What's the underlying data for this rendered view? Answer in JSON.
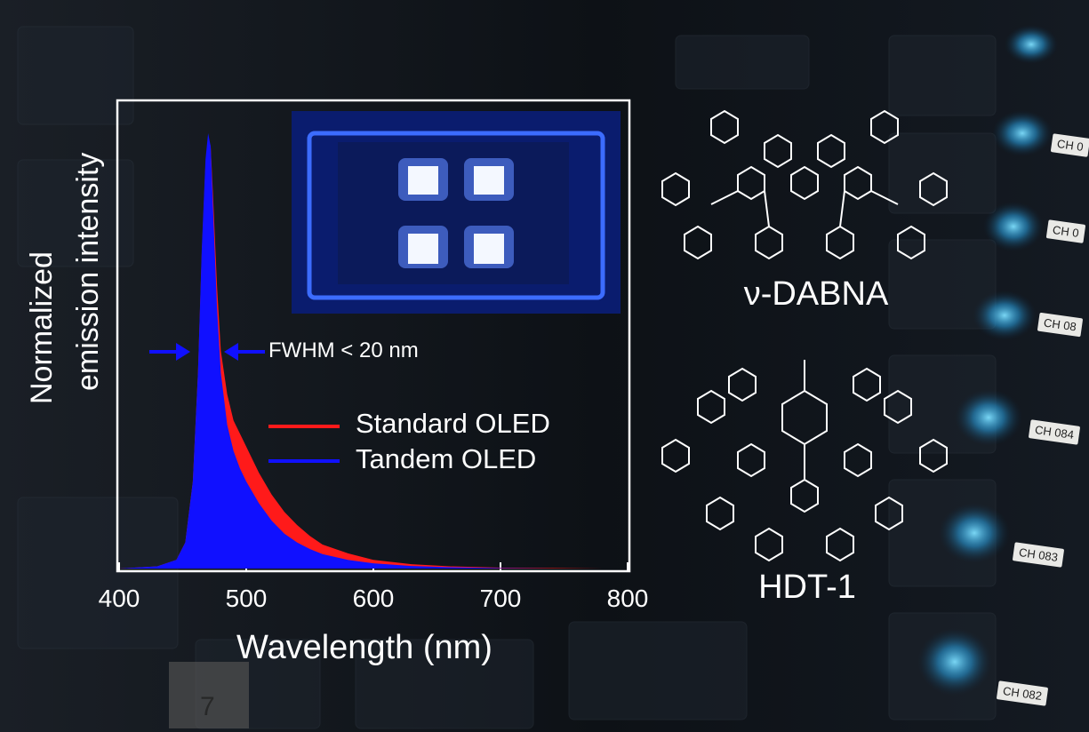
{
  "chart_data": {
    "type": "area",
    "xlabel": "Wavelength (nm)",
    "ylabel": [
      "Normalized",
      "emission intensity"
    ],
    "xlim": [
      400,
      800
    ],
    "ylim": [
      0,
      1.0
    ],
    "x_ticks": [
      "400",
      "500",
      "600",
      "700",
      "800"
    ],
    "grid": false,
    "legend_placement": "center-right",
    "series": [
      {
        "name": "Standard OLED",
        "color": "#ff1a1a",
        "x": [
          400,
          430,
          445,
          452,
          458,
          462,
          465,
          468,
          470,
          472,
          474,
          477,
          480,
          485,
          490,
          495,
          500,
          510,
          520,
          530,
          540,
          550,
          560,
          580,
          600,
          630,
          660,
          700,
          740,
          780
        ],
        "y": [
          0.0,
          0.005,
          0.02,
          0.06,
          0.2,
          0.45,
          0.72,
          0.93,
          0.99,
          0.97,
          0.85,
          0.65,
          0.5,
          0.4,
          0.34,
          0.31,
          0.28,
          0.22,
          0.17,
          0.13,
          0.1,
          0.075,
          0.055,
          0.035,
          0.02,
          0.01,
          0.005,
          0.002,
          0.001,
          0.0
        ]
      },
      {
        "name": "Tandem OLED",
        "color": "#1010ff",
        "x": [
          400,
          430,
          445,
          452,
          458,
          462,
          465,
          468,
          470,
          472,
          474,
          477,
          480,
          485,
          490,
          495,
          500,
          510,
          520,
          530,
          540,
          550,
          560,
          580,
          600,
          630,
          660,
          700,
          740,
          780
        ],
        "y": [
          0.0,
          0.005,
          0.02,
          0.06,
          0.2,
          0.45,
          0.73,
          0.94,
          1.0,
          0.97,
          0.82,
          0.6,
          0.45,
          0.33,
          0.27,
          0.23,
          0.2,
          0.15,
          0.11,
          0.08,
          0.06,
          0.045,
          0.033,
          0.02,
          0.012,
          0.006,
          0.003,
          0.001,
          0.0,
          0.0
        ]
      }
    ],
    "annotations": [
      "FWHM < 20 nm"
    ]
  },
  "molecules": [
    {
      "name": "ν-DABNA"
    },
    {
      "name": "HDT-1"
    }
  ],
  "channel_tags": [
    "CH 0",
    "CH 0",
    "CH 08",
    "CH 084",
    "CH 083",
    "CH 082"
  ],
  "colors": {
    "accent_blue": "#1010ff",
    "accent_red": "#ff1a1a",
    "led_cyan": "#3ec6ff"
  }
}
